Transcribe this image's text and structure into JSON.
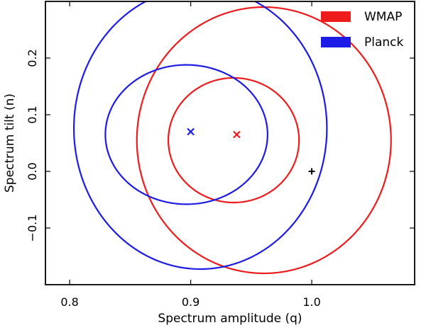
{
  "chart_data": {
    "type": "contour",
    "title": "",
    "xlabel": "Spectrum amplitude (q)",
    "ylabel": "Spectrum tilt (n)",
    "xlim": [
      0.78,
      1.085
    ],
    "ylim": [
      -0.2,
      0.3
    ],
    "xticks": [
      0.8,
      0.9,
      1.0
    ],
    "xtick_labels": [
      "0.8",
      "0.9",
      "1.0"
    ],
    "yticks": [
      -0.1,
      0.0,
      0.1,
      0.2
    ],
    "ytick_labels": [
      "−0.1",
      "0.0",
      "0.1",
      "0.2"
    ],
    "legend": {
      "position": "top-right",
      "entries": [
        {
          "label": "WMAP",
          "color": "#ee1c1c"
        },
        {
          "label": "Planck",
          "color": "#1c1ce6"
        }
      ]
    },
    "series": [
      {
        "name": "WMAP",
        "color": "#ee1c1c",
        "best_fit": {
          "q": 0.938,
          "n": 0.065,
          "marker": "x"
        },
        "contours": [
          {
            "level": "inner",
            "center": [
              0.9355,
              0.055
            ],
            "semi_axis_x": 0.054,
            "semi_axis_y": 0.11,
            "tilt": -1.28
          },
          {
            "level": "outer",
            "center": [
              0.9605,
              0.055
            ],
            "semi_axis_x": 0.105,
            "semi_axis_y": 0.235,
            "tilt": -1.15
          }
        ]
      },
      {
        "name": "Planck",
        "color": "#1c1ce6",
        "best_fit": {
          "q": 0.9,
          "n": 0.07,
          "marker": "x"
        },
        "contours": [
          {
            "level": "inner",
            "center": [
              0.8965,
              0.065
            ],
            "semi_axis_x": 0.067,
            "semi_axis_y": 0.123,
            "tilt": -1.09
          },
          {
            "level": "outer",
            "center": [
              0.908,
              0.076
            ],
            "semi_axis_x": 0.1045,
            "semi_axis_y": 0.2485,
            "tilt": -1.0
          }
        ]
      }
    ],
    "reference_point": {
      "q": 1.0,
      "n": 0.0,
      "marker": "+",
      "color": "#000000"
    }
  }
}
